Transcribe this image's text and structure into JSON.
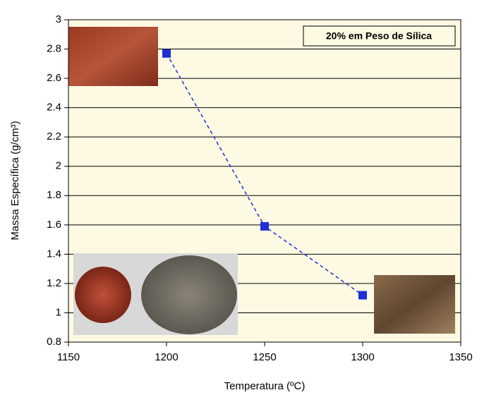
{
  "chart_data": {
    "type": "line",
    "annotation": "20% em Peso de Sílica",
    "x_label": "Temperatura (ºC)",
    "y_label": "Massa Específica (g/cm³)",
    "x": [
      1200,
      1250,
      1300
    ],
    "series": [
      {
        "color": "#1f2fd6",
        "values": [
          2.77,
          1.59,
          1.12
        ]
      }
    ],
    "xlim": [
      1150,
      1350
    ],
    "xticks": [
      1150,
      1200,
      1250,
      1300,
      1350
    ],
    "ylim": [
      0.8,
      3
    ],
    "yticks": [
      0.8,
      1,
      1.2,
      1.4,
      1.6,
      1.8,
      2,
      2.2,
      2.4,
      2.6,
      2.8,
      3
    ],
    "grid": true
  }
}
